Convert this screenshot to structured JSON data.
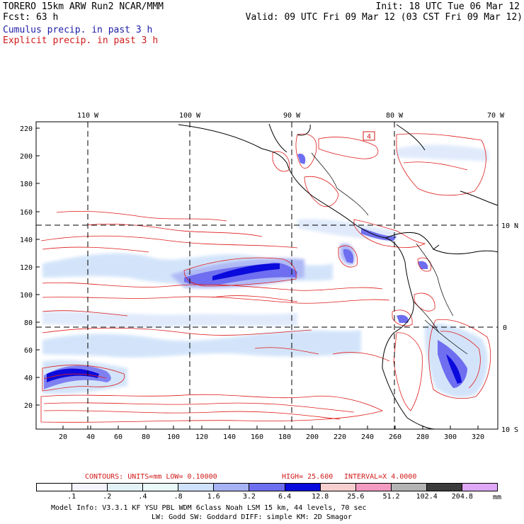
{
  "header": {
    "line1_left": "TORERO  15km ARW    Run2    NCAR/MMM",
    "line1_right": "Init: 18 UTC Tue 06 Mar 12",
    "line2_left": "Fcst:    63 h",
    "line2_right": "Valid: 09 UTC Fri 09 Mar 12 (03 CST Fri 09 Mar 12)",
    "line3": "Cumulus precip. in past 3 h",
    "line4": "Explicit precip. in past 3 h"
  },
  "map": {
    "top_lon_labels": [
      "110 W",
      "100 W",
      "90 W",
      "80 W",
      "70 W"
    ],
    "right_lat_labels": [
      "10 N",
      "0",
      "10 S"
    ],
    "left_y_ticks": [
      "220",
      "200",
      "180",
      "160",
      "140",
      "120",
      "100",
      "80",
      "60",
      "40",
      "20"
    ],
    "bottom_x_ticks": [
      "20",
      "40",
      "60",
      "80",
      "100",
      "120",
      "140",
      "160",
      "180",
      "200",
      "220",
      "240",
      "260",
      "280",
      "300",
      "320"
    ],
    "box_label": "4"
  },
  "contour_info": {
    "contours_label": "CONTOURS:  UNITS=mm  LOW= 0.10000",
    "high_label": "HIGH=  25.600",
    "interval_label": "INTERVAL=X  4.0000"
  },
  "colorbar": {
    "unit": "mm",
    "labels": [
      ".1",
      ".2",
      ".4",
      ".8",
      "1.6",
      "3.2",
      "6.4",
      "12.8",
      "25.6",
      "51.2",
      "102.4",
      "204.8"
    ],
    "colors": [
      "#ffffff",
      "#f4f4ff",
      "#e2f2f6",
      "#e9faf8",
      "#cfe2fa",
      "#a7b2f4",
      "#6e6ef0",
      "#0a0adc",
      "#f8cfcf",
      "#f39ac0",
      "#b4b4b4",
      "#3c3c3c",
      "#dea8f6"
    ]
  },
  "footer": {
    "line1": "Model Info: V3.3.1   KF     YSU PBL   WDM 6class  Noah LSM  15 km,   44 levels,   70 sec",
    "line2": "LW: Godd SW: Goddard DIFF: simple KM: 2D Smagor"
  }
}
